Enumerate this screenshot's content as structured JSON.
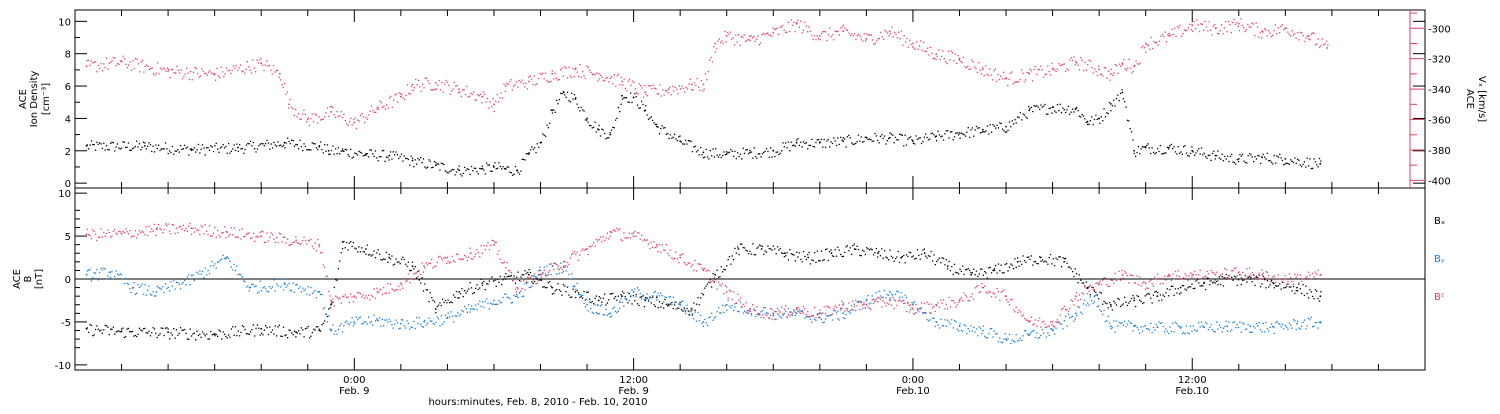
{
  "chart_data": [
    {
      "type": "scatter",
      "panel": "top",
      "left_axis": {
        "label_lines": [
          "ACE",
          "Ion Density",
          "[cm⁻³]"
        ],
        "ylim": [
          -0.3,
          10.7
        ],
        "ticks": [
          0,
          2,
          4,
          6,
          8,
          10
        ]
      },
      "right_axis": {
        "label_lines": [
          "ACE",
          "Vₓ [km/s]"
        ],
        "ylim": [
          -405,
          -288
        ],
        "ticks": [
          -300,
          -320,
          -340,
          -360,
          -380,
          -400
        ],
        "color": "#e0406a"
      },
      "series": [
        {
          "name": "",
          "color": "#000000",
          "axis": "left",
          "x": [
            -11.5,
            -9,
            -7,
            -5,
            -3,
            -1.5,
            -1.1,
            -0.5,
            0.5,
            1.5,
            2.5,
            3.5,
            4.5,
            5.5,
            6,
            6.5,
            7,
            7.5,
            8,
            8.5,
            9,
            9.5,
            10,
            10.5,
            11,
            11.5,
            12,
            12.5,
            13,
            14,
            15,
            16,
            17,
            18,
            19,
            20,
            21,
            22,
            23,
            24,
            25,
            26,
            27,
            28,
            29,
            30,
            31,
            31.5,
            32,
            32.5,
            33,
            33.5,
            34,
            35,
            36,
            37,
            38,
            39,
            40,
            41.5
          ],
          "y": [
            2.3,
            2.3,
            2.1,
            2.2,
            2.5,
            2.3,
            2.0,
            2.0,
            1.8,
            1.7,
            1.4,
            1.1,
            0.8,
            0.9,
            1.0,
            0.9,
            0.8,
            1.8,
            2.5,
            4.5,
            5.6,
            5.2,
            4.0,
            3.3,
            3.0,
            5.4,
            5.3,
            4.5,
            3.5,
            2.6,
            1.9,
            1.8,
            1.9,
            2.0,
            2.5,
            2.5,
            2.6,
            2.8,
            2.8,
            2.6,
            2.9,
            3.1,
            3.3,
            3.5,
            4.5,
            4.7,
            4.6,
            3.8,
            4.0,
            4.9,
            5.6,
            2.0,
            2.2,
            2.2,
            2.0,
            1.7,
            1.5,
            1.6,
            1.5,
            1.2
          ]
        },
        {
          "name": "",
          "color": "#e0406a",
          "axis": "right",
          "x": [
            -11.5,
            -10,
            -8,
            -6,
            -4,
            -3.2,
            -2.8,
            -2,
            -1,
            0,
            1,
            2,
            2.5,
            3.5,
            4.5,
            5.5,
            6,
            6.5,
            7.5,
            8.5,
            9.5,
            10.5,
            11.5,
            12.5,
            13.5,
            14.5,
            15,
            15.5,
            16,
            17,
            18,
            19,
            20,
            21,
            22,
            23,
            24,
            25,
            26,
            27,
            28,
            29,
            30,
            31,
            32,
            32.5,
            33,
            33.5,
            34,
            35,
            36,
            37,
            38,
            39,
            40,
            41,
            41.8
          ],
          "y": [
            -325,
            -322,
            -328,
            -330,
            -323,
            -330,
            -350,
            -360,
            -355,
            -362,
            -352,
            -345,
            -337,
            -336,
            -340,
            -345,
            -350,
            -338,
            -335,
            -330,
            -327,
            -330,
            -335,
            -342,
            -340,
            -337,
            -337,
            -310,
            -305,
            -308,
            -303,
            -297,
            -305,
            -302,
            -307,
            -302,
            -310,
            -317,
            -320,
            -327,
            -333,
            -330,
            -327,
            -322,
            -327,
            -330,
            -323,
            -325,
            -310,
            -305,
            -298,
            -300,
            -297,
            -302,
            -300,
            -305,
            -313
          ]
        }
      ]
    },
    {
      "type": "scatter",
      "panel": "bottom",
      "left_axis": {
        "label_lines": [
          "ACE",
          "B",
          "[nT]"
        ],
        "ylim": [
          -10.6,
          10.6
        ],
        "ticks": [
          -10,
          -5,
          0,
          5,
          10
        ]
      },
      "zero_line": 0,
      "series": [
        {
          "name": "Bₓ",
          "color": "#000000",
          "x": [
            -11.5,
            -10,
            -8,
            -6,
            -4,
            -2.5,
            -1.5,
            -1,
            -0.5,
            0.5,
            1.5,
            2.5,
            3.5,
            4.5,
            5.5,
            6.5,
            7.5,
            8.5,
            9.5,
            10.5,
            11.5,
            12.5,
            13.5,
            14.5,
            15.5,
            16.5,
            17.5,
            18.5,
            19.5,
            20.5,
            21.5,
            22.5,
            23.5,
            24.5,
            25.5,
            26.5,
            27.5,
            28.5,
            29.5,
            30.5,
            31.5,
            32.5,
            33.5,
            34.5,
            35.5,
            36.5,
            37.5,
            38.5,
            39.5,
            40.5,
            41.5
          ],
          "y": [
            -5.8,
            -6.1,
            -6.2,
            -6.4,
            -5.8,
            -6.2,
            -6.0,
            -3.0,
            4.3,
            3.5,
            2.5,
            1.5,
            -3.5,
            -1.5,
            -0.5,
            0.0,
            0.5,
            -1.0,
            -1.5,
            -2.5,
            -2.0,
            -2.5,
            -3.0,
            -3.5,
            0.5,
            3.5,
            3.5,
            3.0,
            2.5,
            3.0,
            3.5,
            3.0,
            2.5,
            3.0,
            1.5,
            0.5,
            1.0,
            2.0,
            2.5,
            2.0,
            -1.0,
            -3.0,
            -2.5,
            -2.0,
            -1.0,
            -0.5,
            0.0,
            0.0,
            -0.5,
            -1.0,
            -2.0
          ]
        },
        {
          "name": "Bᵧ",
          "color": "#1a7fd4",
          "x": [
            -11.5,
            -10.5,
            -9.5,
            -8.5,
            -7,
            -5.5,
            -4.5,
            -3,
            -1.5,
            -1,
            0,
            1,
            2,
            3,
            4,
            5,
            6,
            7,
            8,
            9,
            10,
            11,
            12,
            13,
            14,
            15,
            16,
            17,
            18,
            19,
            20,
            21,
            22,
            23,
            24,
            25,
            26,
            27,
            28,
            29,
            30,
            31,
            31.8,
            32.5,
            33.5,
            34.5,
            35.5,
            36.5,
            37.5,
            38.5,
            39.5,
            40.5,
            41.5
          ],
          "y": [
            0.5,
            0.8,
            -1.0,
            -1.5,
            0.0,
            2.5,
            -1.0,
            -0.5,
            -1.5,
            -6.0,
            -5.0,
            -4.8,
            -5.2,
            -5.0,
            -4.5,
            -3.5,
            -2.5,
            -2.0,
            1.0,
            1.5,
            -3.0,
            -4.0,
            -1.5,
            -2.0,
            -3.0,
            -5.0,
            -3.0,
            -3.5,
            -4.0,
            -4.0,
            -4.5,
            -4.0,
            -2.5,
            -1.5,
            -3.0,
            -5.0,
            -5.5,
            -6.0,
            -7.0,
            -6.5,
            -6.0,
            -4.0,
            -2.0,
            -5.5,
            -5.5,
            -5.6,
            -5.7,
            -5.6,
            -5.5,
            -5.5,
            -5.6,
            -5.2,
            -5.0
          ]
        },
        {
          "name": "Bᶻ",
          "color": "#e0406a",
          "x": [
            -11.5,
            -10,
            -8.5,
            -7,
            -5.5,
            -4,
            -2.5,
            -1.5,
            -1,
            0,
            1,
            2,
            3,
            4,
            5,
            6,
            7,
            8,
            9,
            10,
            11,
            12,
            13,
            14,
            15,
            16,
            17,
            18,
            19,
            20,
            21,
            22,
            23,
            24,
            25,
            26,
            27,
            28,
            29,
            30,
            31,
            32,
            33,
            34,
            35,
            36,
            37,
            38,
            39,
            40,
            41.5
          ],
          "y": [
            5.2,
            5.3,
            5.8,
            5.9,
            5.5,
            5.0,
            4.5,
            4.0,
            -2.5,
            -2.0,
            -1.5,
            -0.5,
            1.5,
            2.5,
            3.0,
            4.0,
            -1.0,
            0.5,
            2.0,
            3.5,
            5.5,
            5.0,
            4.0,
            2.5,
            1.0,
            -1.5,
            -3.5,
            -4.0,
            -3.5,
            -4.0,
            -3.0,
            -3.0,
            -2.5,
            -3.5,
            -3.0,
            -2.5,
            -1.0,
            -2.0,
            -5.0,
            -5.0,
            -2.0,
            -0.5,
            0.5,
            -0.5,
            0.5,
            0.5,
            0.5,
            0.8,
            0.5,
            0.0,
            0.5
          ]
        }
      ]
    }
  ],
  "x_axis": {
    "range_hours": [
      -12,
      46
    ],
    "major_tick_every_hours": 12,
    "minor_tick_every_hours": 2,
    "tick_labels": [
      {
        "hour": 0,
        "line1": "0:00",
        "line2": "Feb. 9"
      },
      {
        "hour": 12,
        "line1": "12:00",
        "line2": "Feb. 9"
      },
      {
        "hour": 24,
        "line1": "0:00",
        "line2": "Feb.10"
      },
      {
        "hour": 36,
        "line1": "12:00",
        "line2": "Feb.10"
      }
    ],
    "title": "hours:minutes, Feb.  8, 2010 - Feb. 10, 2010"
  },
  "legend": {
    "placement": "right",
    "entries": [
      {
        "text": "Bₓ",
        "color": "#000000"
      },
      {
        "text": "Bᵧ",
        "color": "#1a7fd4"
      },
      {
        "text": "Bᶻ",
        "color": "#e0406a"
      }
    ]
  }
}
